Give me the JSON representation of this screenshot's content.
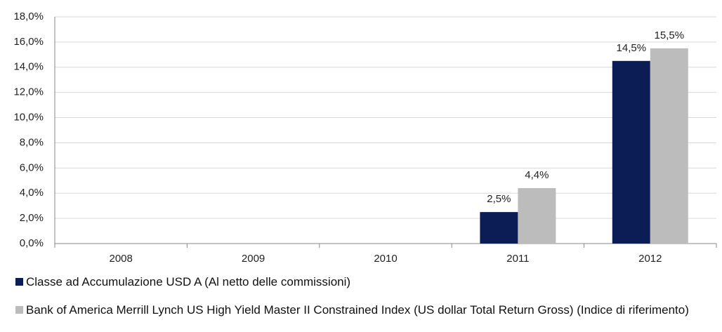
{
  "chart_data": {
    "type": "bar",
    "categories": [
      "2008",
      "2009",
      "2010",
      "2011",
      "2012"
    ],
    "series": [
      {
        "name": "Classe ad Accumulazione USD A (Al netto delle commissioni)",
        "color": "#0c1c55",
        "values": [
          null,
          null,
          null,
          2.5,
          14.5
        ],
        "value_labels": [
          null,
          null,
          null,
          "2,5%",
          "14,5%"
        ]
      },
      {
        "name": "Bank of America Merrill Lynch US High Yield Master II Constrained Index (US dollar Total Return Gross) (Indice di riferimento)",
        "color": "#bcbcbc",
        "values": [
          null,
          null,
          null,
          4.4,
          15.5
        ],
        "value_labels": [
          null,
          null,
          null,
          "4,4%",
          "15,5%"
        ]
      }
    ],
    "ylim": [
      0,
      18
    ],
    "yticks": [
      {
        "value": 0,
        "label": "0,0%"
      },
      {
        "value": 2,
        "label": "2,0%"
      },
      {
        "value": 4,
        "label": "4,0%"
      },
      {
        "value": 6,
        "label": "6,0%"
      },
      {
        "value": 8,
        "label": "8,0%"
      },
      {
        "value": 10,
        "label": "10,0%"
      },
      {
        "value": 12,
        "label": "12,0%"
      },
      {
        "value": 14,
        "label": "14,0%"
      },
      {
        "value": 16,
        "label": "16,0%"
      },
      {
        "value": 18,
        "label": "18,0%"
      }
    ],
    "grid": true
  }
}
